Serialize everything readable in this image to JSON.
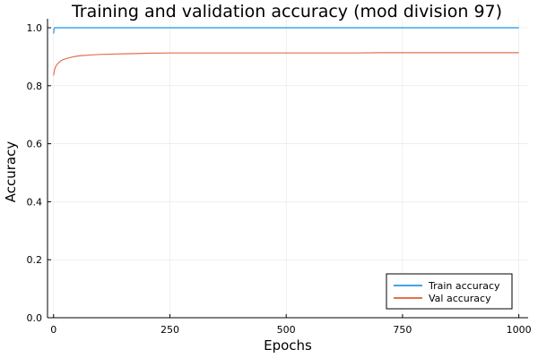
{
  "chart_data": {
    "type": "line",
    "title": "Training and validation accuracy (mod division 97)",
    "xlabel": "Epochs",
    "ylabel": "Accuracy",
    "xlim": [
      0,
      1000
    ],
    "ylim": [
      0,
      1.0
    ],
    "xticks": [
      0,
      250,
      500,
      750,
      1000
    ],
    "xtick_labels": [
      "0",
      "250",
      "500",
      "750",
      "1000"
    ],
    "yticks": [
      0.0,
      0.2,
      0.4,
      0.6,
      0.8,
      1.0
    ],
    "ytick_labels": [
      "0.0",
      "0.2",
      "0.4",
      "0.6",
      "0.8",
      "1.0"
    ],
    "grid": true,
    "legend_position": "bottom-right",
    "series": [
      {
        "name": "Train accuracy",
        "color": "#3da5f0",
        "x": [
          0,
          1,
          2,
          3,
          5,
          10,
          25,
          50,
          100,
          200,
          300,
          400,
          500,
          600,
          700,
          800,
          900,
          1000
        ],
        "values": [
          0.98,
          0.995,
          0.999,
          1.0,
          1.0,
          1.0,
          1.0,
          1.0,
          1.0,
          1.0,
          1.0,
          1.0,
          1.0,
          1.0,
          1.0,
          1.0,
          1.0,
          1.0
        ]
      },
      {
        "name": "Val accuracy",
        "color": "#e2714f",
        "x": [
          0,
          2,
          5,
          10,
          15,
          20,
          30,
          40,
          50,
          60,
          80,
          100,
          125,
          150,
          175,
          200,
          250,
          300,
          350,
          400,
          450,
          500,
          550,
          600,
          650,
          700,
          750,
          800,
          850,
          900,
          950,
          1000
        ],
        "values": [
          0.835,
          0.855,
          0.868,
          0.878,
          0.885,
          0.89,
          0.895,
          0.899,
          0.902,
          0.904,
          0.906,
          0.908,
          0.909,
          0.91,
          0.911,
          0.912,
          0.913,
          0.913,
          0.913,
          0.913,
          0.913,
          0.913,
          0.913,
          0.913,
          0.913,
          0.914,
          0.914,
          0.914,
          0.914,
          0.914,
          0.914,
          0.914
        ]
      }
    ]
  }
}
